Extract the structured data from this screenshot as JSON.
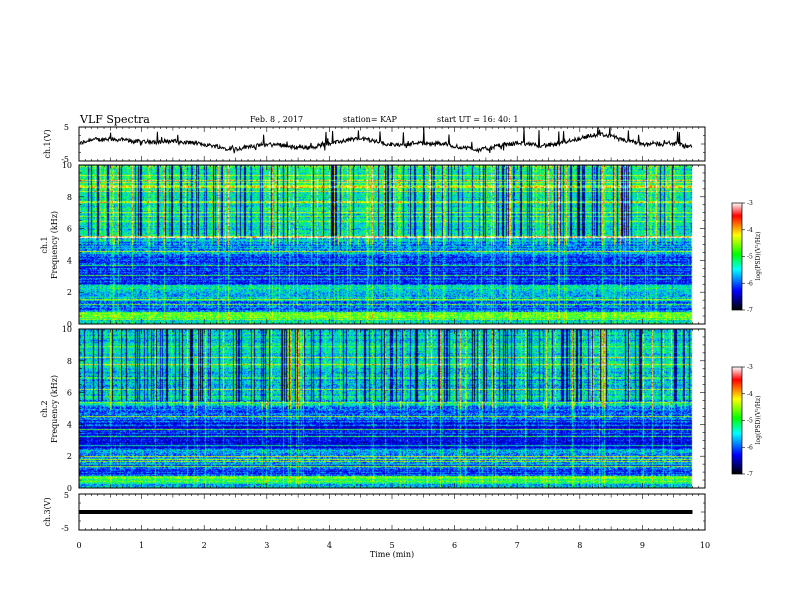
{
  "header": {
    "title": "VLF Spectra",
    "date": "Feb. 8 , 2017",
    "station": "station= KAP",
    "start": "start UT = 16: 40: 1"
  },
  "chart_data": [
    {
      "type": "line",
      "panel": "ch1-waveform",
      "ylabel": "ch.1(V)",
      "ylim": [
        -5,
        5
      ],
      "yticks": [
        "5",
        "-5"
      ],
      "x_range_min": [
        0,
        9.8
      ],
      "color": "#000000"
    },
    {
      "type": "heatmap",
      "panel": "ch1-spectrogram",
      "ylabel": "ch.1\nFrequency (kHz)",
      "ylim": [
        0,
        10
      ],
      "yticks": [
        "0",
        "2",
        "4",
        "6",
        "8",
        "10"
      ],
      "colorbar": {
        "label": "log(PSD)(V²/Hz)",
        "range": [
          -7,
          -3
        ],
        "ticks": [
          "-3",
          "-4",
          "-5",
          "-6",
          "-7"
        ],
        "colors": [
          "#ffffff",
          "#ff0000",
          "#ffff00",
          "#00ff00",
          "#00ffff",
          "#0000ff",
          "#000000"
        ]
      }
    },
    {
      "type": "heatmap",
      "panel": "ch2-spectrogram",
      "ylabel": "ch.2\nFrequency (kHz)",
      "ylim": [
        0,
        10
      ],
      "yticks": [
        "0",
        "2",
        "4",
        "6",
        "8",
        "10"
      ],
      "colorbar": {
        "label": "log(PSD)(V²/Hz)",
        "range": [
          -7,
          -3
        ],
        "ticks": [
          "-3",
          "-4",
          "-5",
          "-6",
          "-7"
        ],
        "colors": [
          "#ffffff",
          "#ff0000",
          "#ffff00",
          "#00ff00",
          "#00ffff",
          "#0000ff",
          "#000000"
        ]
      }
    },
    {
      "type": "line",
      "panel": "ch3-waveform",
      "ylabel": "ch.3(V)",
      "ylim": [
        -5,
        5
      ],
      "yticks": [
        "5",
        "-5"
      ],
      "constant_value": 0,
      "color": "#000000"
    }
  ],
  "xaxis": {
    "label": "Time (min)",
    "range": [
      0,
      10
    ],
    "ticks": [
      "0",
      "1",
      "2",
      "3",
      "4",
      "5",
      "6",
      "7",
      "8",
      "9",
      "10"
    ]
  }
}
